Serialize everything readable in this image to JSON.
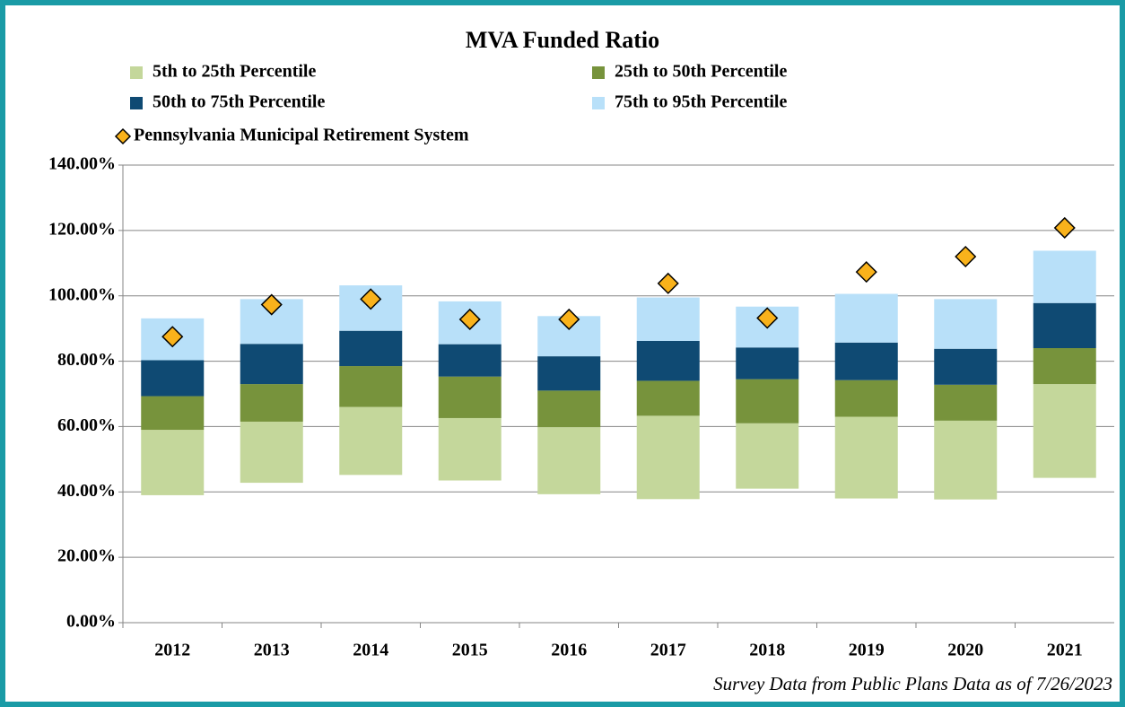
{
  "chart_data": {
    "type": "floating-stacked-bar",
    "title": "MVA Funded Ratio",
    "note": "Survey Data from Public Plans Data as of 7/26/2023",
    "categories": [
      "2012",
      "2013",
      "2014",
      "2015",
      "2016",
      "2017",
      "2018",
      "2019",
      "2020",
      "2021"
    ],
    "base": [
      39,
      42.8,
      45.2,
      43.5,
      39.3,
      37.8,
      41,
      38,
      37.7,
      44.3
    ],
    "series": [
      {
        "name": "5th to 25th Percentile",
        "color": "#c4d79b",
        "values": [
          20,
          18.7,
          20.8,
          19.1,
          20.5,
          25.5,
          20,
          25,
          24.1,
          28.7
        ]
      },
      {
        "name": "25th to 50th Percentile",
        "color": "#77933c",
        "values": [
          10.3,
          11.5,
          12.5,
          12.7,
          11.2,
          10.7,
          13.5,
          11.2,
          11,
          11
        ]
      },
      {
        "name": "50th to 75th Percentile",
        "color": "#0f4a73",
        "values": [
          11,
          12.3,
          10.8,
          9.9,
          10.5,
          12.2,
          9.7,
          11.5,
          11,
          13.8
        ]
      },
      {
        "name": "75th to 95th Percentile",
        "color": "#b8e0f9",
        "values": [
          12.8,
          13.7,
          13.9,
          13.1,
          12.3,
          13.3,
          12.5,
          14.9,
          15.2,
          16
        ]
      }
    ],
    "markers": {
      "name": "Pennsylvania Municipal Retirement System",
      "color": "#f9b21b",
      "values": [
        87.5,
        97.3,
        99,
        92.8,
        92.8,
        103.8,
        93.2,
        107.3,
        112,
        120.8
      ]
    },
    "ylim": [
      0,
      140
    ],
    "yticks": [
      {
        "value": 0,
        "label": "0.00%"
      },
      {
        "value": 20,
        "label": "20.00%"
      },
      {
        "value": 40,
        "label": "40.00%"
      },
      {
        "value": 60,
        "label": "60.00%"
      },
      {
        "value": 80,
        "label": "80.00%"
      },
      {
        "value": 100,
        "label": "100.00%"
      },
      {
        "value": 120,
        "label": "120.00%"
      },
      {
        "value": 140,
        "label": "140.00%"
      }
    ],
    "grid": true
  }
}
